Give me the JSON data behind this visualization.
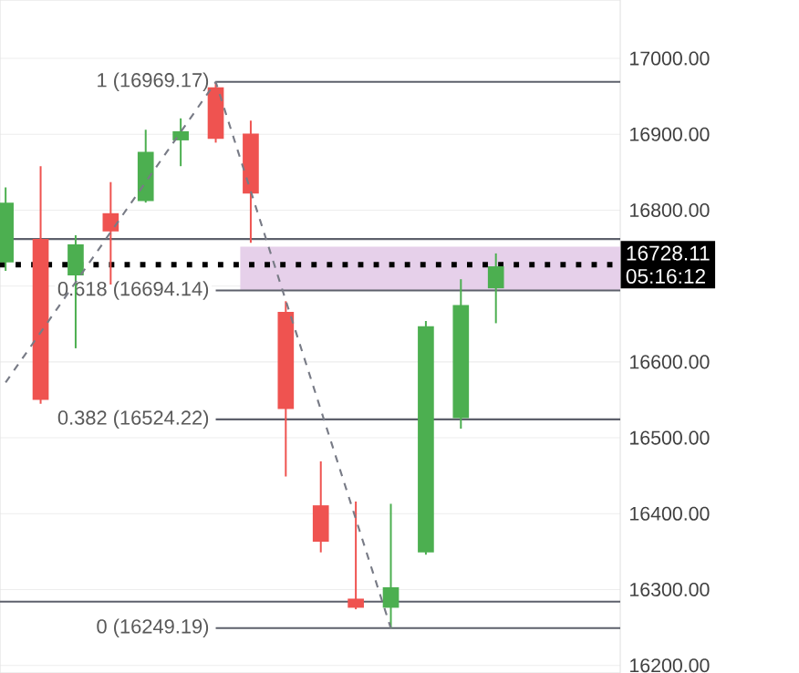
{
  "chart_data": {
    "type": "candlestick",
    "categories": [
      null,
      null,
      null,
      null,
      null,
      null,
      null,
      null,
      null,
      null,
      null,
      null,
      null,
      null,
      null
    ],
    "ohlc": [
      [
        16731,
        16830,
        16720,
        16810
      ],
      [
        16762,
        16858,
        16545,
        16550
      ],
      [
        16714,
        16767,
        16618,
        16755
      ],
      [
        16796,
        16837,
        16702,
        16772
      ],
      [
        16812,
        16906,
        16810,
        16877
      ],
      [
        16892,
        16921,
        16858,
        16904
      ],
      [
        16962,
        16969,
        16889,
        16894
      ],
      [
        16901,
        16918,
        16757,
        16822
      ],
      [
        16666,
        16680,
        16449,
        16538
      ],
      [
        16411,
        16469,
        16349,
        16363
      ],
      [
        16288,
        16416,
        16274,
        16276
      ],
      [
        16276,
        16413,
        16249,
        16303
      ],
      [
        16349,
        16654,
        16346,
        16647
      ],
      [
        16526,
        16709,
        16512,
        16675
      ],
      [
        16697,
        16743,
        16651,
        16726
      ]
    ],
    "colors": [
      "#4caf50",
      "#ef5350",
      "#4caf50",
      "#ef5350",
      "#4caf50",
      "#4caf50",
      "#ef5350",
      "#ef5350",
      "#ef5350",
      "#ef5350",
      "#ef5350",
      "#4caf50",
      "#4caf50",
      "#4caf50",
      "#4caf50"
    ],
    "series": [
      {
        "type": "line",
        "color": "#787b86",
        "line_style": "dashed",
        "values": [
          16573,
          16639,
          16705,
          16771,
          16837,
          16903,
          16969,
          16825,
          16681,
          16537,
          16393,
          16249,
          null,
          null,
          null
        ]
      }
    ],
    "ylim": [
      16190,
      17077
    ],
    "yticks": [
      {
        "value": 16200,
        "label": "16200.00"
      },
      {
        "value": 16300,
        "label": "16300.00"
      },
      {
        "value": 16400,
        "label": "16400.00"
      },
      {
        "value": 16500,
        "label": "16500.00"
      },
      {
        "value": 16600,
        "label": "16600.00"
      },
      {
        "value": 16700,
        "label": null
      },
      {
        "value": 16800,
        "label": "16800.00"
      },
      {
        "value": 16900,
        "label": "16900.00"
      },
      {
        "value": 17000,
        "label": "17000.00"
      }
    ],
    "grid": "y",
    "tick_labels": "y",
    "ref_lines": [
      {
        "axis": "y",
        "value": 16969.17,
        "label": "1 (16969.17)",
        "color": "#5d606b"
      },
      {
        "axis": "y",
        "value": 16762,
        "color": "#5d606b"
      },
      {
        "axis": "y",
        "value": 16694.14,
        "label": "0.618 (16694.14)",
        "color": "#5d606b"
      },
      {
        "axis": "y",
        "value": 16524.22,
        "label": "0.382 (16524.22)",
        "color": "#5d606b"
      },
      {
        "axis": "y",
        "value": 16284,
        "color": "#5d606b"
      },
      {
        "axis": "y",
        "value": 16249.19,
        "label": "0 (16249.19)",
        "color": "#5d606b"
      },
      {
        "axis": "y",
        "value": 16728.11,
        "color": "#000000",
        "line_style": "dotted"
      }
    ],
    "bands": [
      {
        "axis": "y",
        "from": 16694.14,
        "to": 16752,
        "color": "#e6d0ea"
      }
    ],
    "annotations": [
      "16728.11",
      "05:16:12"
    ]
  }
}
